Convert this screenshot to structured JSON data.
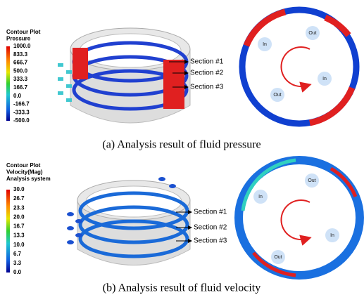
{
  "panels": [
    {
      "legend": {
        "title": [
          "Contour Plot",
          "Pressure"
        ],
        "labels": [
          "1000.0",
          "833.3",
          "666.7",
          "500.0",
          "333.3",
          "166.7",
          "0.0",
          "-166.7",
          "-333.3",
          "-500.0"
        ]
      },
      "sections": [
        "Section #1",
        "Section #2",
        "Section #3"
      ],
      "ports": [
        "In",
        "Out",
        "In",
        "Out"
      ],
      "caption": "(a) Analysis result of fluid pressure"
    },
    {
      "legend": {
        "title": [
          "Contour Plot",
          "Velocity(Mag)",
          "Analysis system"
        ],
        "labels": [
          "30.0",
          "26.7",
          "23.3",
          "20.0",
          "16.7",
          "13.3",
          "10.0",
          "6.7",
          "3.3",
          "0.0"
        ]
      },
      "sections": [
        "Section #1",
        "Section #2",
        "Section #3"
      ],
      "ports": [
        "In",
        "Out",
        "In",
        "Out"
      ],
      "caption": "(b) Analysis result of fluid velocity"
    }
  ]
}
